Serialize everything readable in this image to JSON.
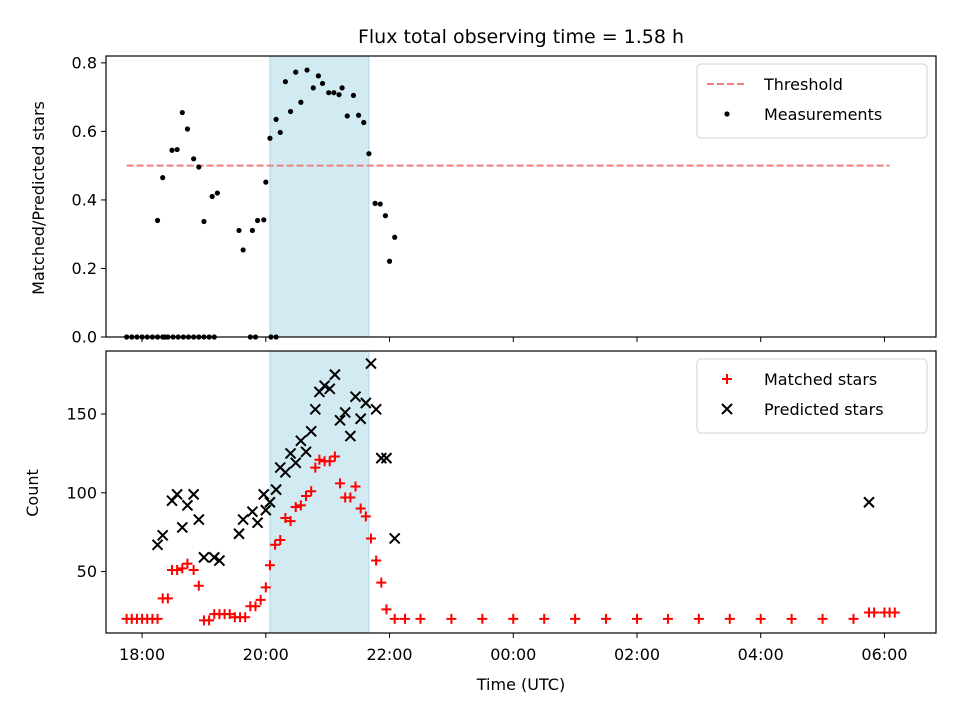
{
  "chart_data": [
    {
      "type": "scatter",
      "title": "Flux total observing time = 1.58 h",
      "ylabel": "Matched/Predicted stars",
      "xlabel": "",
      "xlim": [
        "17:25",
        "06:50"
      ],
      "ylim": [
        0,
        0.82
      ],
      "yticks": [
        "0.0",
        "0.2",
        "0.4",
        "0.6",
        "0.8"
      ],
      "highlight_span": [
        "20:04",
        "21:40"
      ],
      "highlight_color": "#add8e6",
      "grid": false,
      "legend_position": "top-right",
      "threshold": {
        "name": "Threshold",
        "value": 0.5,
        "x_from": "17:45",
        "x_to": "06:05",
        "color": "#f08080",
        "style": "dashed"
      },
      "series": [
        {
          "name": "Measurements",
          "marker": "dot",
          "color": "#000000",
          "points": [
            [
              "17:45",
              0.0
            ],
            [
              "17:50",
              0.0
            ],
            [
              "17:55",
              0.0
            ],
            [
              "18:00",
              0.0
            ],
            [
              "18:05",
              0.0
            ],
            [
              "18:10",
              0.0
            ],
            [
              "18:15",
              0.0
            ],
            [
              "18:20",
              0.0
            ],
            [
              "18:25",
              0.0
            ],
            [
              "18:30",
              0.0
            ],
            [
              "18:35",
              0.0
            ],
            [
              "18:40",
              0.0
            ],
            [
              "18:45",
              0.0
            ],
            [
              "18:50",
              0.0
            ],
            [
              "18:55",
              0.0
            ],
            [
              "19:00",
              0.0
            ],
            [
              "19:05",
              0.0
            ],
            [
              "18:15",
              0.34
            ],
            [
              "18:20",
              0.465
            ],
            [
              "18:29",
              0.545
            ],
            [
              "18:34",
              0.547
            ],
            [
              "18:39",
              0.655
            ],
            [
              "18:44",
              0.607
            ],
            [
              "18:50",
              0.52
            ],
            [
              "18:55",
              0.496
            ],
            [
              "19:00",
              0.337
            ],
            [
              "19:08",
              0.41
            ],
            [
              "19:13",
              0.42
            ],
            [
              "19:34",
              0.311
            ],
            [
              "19:38",
              0.254
            ],
            [
              "19:47",
              0.311
            ],
            [
              "19:52",
              0.34
            ],
            [
              "19:58",
              0.342
            ],
            [
              "20:00",
              0.452
            ],
            [
              "20:04",
              0.58
            ],
            [
              "20:10",
              0.635
            ],
            [
              "20:14",
              0.597
            ],
            [
              "20:19",
              0.745
            ],
            [
              "20:24",
              0.658
            ],
            [
              "20:29",
              0.773
            ],
            [
              "20:34",
              0.685
            ],
            [
              "20:40",
              0.779
            ],
            [
              "20:46",
              0.727
            ],
            [
              "20:51",
              0.762
            ],
            [
              "20:55",
              0.74
            ],
            [
              "21:01",
              0.713
            ],
            [
              "21:06",
              0.713
            ],
            [
              "21:11",
              0.707
            ],
            [
              "21:14",
              0.727
            ],
            [
              "21:19",
              0.645
            ],
            [
              "21:25",
              0.705
            ],
            [
              "21:30",
              0.647
            ],
            [
              "21:35",
              0.626
            ],
            [
              "21:40",
              0.535
            ],
            [
              "21:46",
              0.39
            ],
            [
              "21:51",
              0.388
            ],
            [
              "21:56",
              0.354
            ],
            [
              "22:00",
              0.221
            ],
            [
              "22:05",
              0.291
            ],
            [
              "18:22",
              0.0
            ],
            [
              "19:10",
              0.0
            ],
            [
              "19:45",
              0.0
            ],
            [
              "19:50",
              0.0
            ],
            [
              "20:05",
              0.0
            ],
            [
              "20:10",
              0.0
            ]
          ]
        }
      ]
    },
    {
      "type": "scatter",
      "title": "",
      "ylabel": "Count",
      "xlabel": "Time (UTC)",
      "xlim": [
        "17:25",
        "06:50"
      ],
      "ylim": [
        11,
        190
      ],
      "yticks": [
        "50",
        "100",
        "150"
      ],
      "xticks": [
        "18:00",
        "20:00",
        "22:00",
        "00:00",
        "02:00",
        "04:00",
        "06:00"
      ],
      "highlight_span": [
        "20:04",
        "21:40"
      ],
      "highlight_color": "#add8e6",
      "grid": false,
      "legend_position": "top-right",
      "series": [
        {
          "name": "Matched stars",
          "marker": "plus",
          "color": "#ff0000",
          "points": [
            [
              "17:45",
              20
            ],
            [
              "17:50",
              20
            ],
            [
              "17:55",
              20
            ],
            [
              "18:00",
              20
            ],
            [
              "18:05",
              20
            ],
            [
              "18:10",
              20
            ],
            [
              "18:15",
              20
            ],
            [
              "18:20",
              33
            ],
            [
              "18:25",
              33
            ],
            [
              "18:29",
              51
            ],
            [
              "18:34",
              51
            ],
            [
              "18:39",
              52
            ],
            [
              "18:44",
              55
            ],
            [
              "18:50",
              51
            ],
            [
              "18:55",
              41
            ],
            [
              "19:00",
              19
            ],
            [
              "19:05",
              19
            ],
            [
              "19:10",
              23
            ],
            [
              "19:15",
              23
            ],
            [
              "19:20",
              23
            ],
            [
              "19:25",
              23
            ],
            [
              "19:30",
              21
            ],
            [
              "19:35",
              21
            ],
            [
              "19:40",
              21
            ],
            [
              "19:45",
              28
            ],
            [
              "19:50",
              28
            ],
            [
              "19:55",
              32
            ],
            [
              "20:00",
              40
            ],
            [
              "20:04",
              54
            ],
            [
              "20:09",
              67
            ],
            [
              "20:14",
              70
            ],
            [
              "20:19",
              84
            ],
            [
              "20:24",
              82
            ],
            [
              "20:29",
              91
            ],
            [
              "20:34",
              92
            ],
            [
              "20:39",
              98
            ],
            [
              "20:44",
              101
            ],
            [
              "20:48",
              116
            ],
            [
              "20:52",
              121
            ],
            [
              "20:57",
              120
            ],
            [
              "21:02",
              120
            ],
            [
              "21:07",
              123
            ],
            [
              "21:12",
              106
            ],
            [
              "21:17",
              97
            ],
            [
              "21:22",
              97
            ],
            [
              "21:27",
              104
            ],
            [
              "21:32",
              90
            ],
            [
              "21:37",
              85
            ],
            [
              "21:42",
              71
            ],
            [
              "21:47",
              57
            ],
            [
              "21:52",
              43
            ],
            [
              "21:57",
              26
            ],
            [
              "22:05",
              20
            ],
            [
              "22:15",
              20
            ],
            [
              "22:30",
              20
            ],
            [
              "23:00",
              20
            ],
            [
              "23:30",
              20
            ],
            [
              "00:00",
              20
            ],
            [
              "00:30",
              20
            ],
            [
              "01:00",
              20
            ],
            [
              "01:30",
              20
            ],
            [
              "02:00",
              20
            ],
            [
              "02:30",
              20
            ],
            [
              "03:00",
              20
            ],
            [
              "03:30",
              20
            ],
            [
              "04:00",
              20
            ],
            [
              "04:30",
              20
            ],
            [
              "05:00",
              20
            ],
            [
              "05:30",
              20
            ],
            [
              "05:45",
              24
            ],
            [
              "05:50",
              24
            ],
            [
              "06:00",
              24
            ],
            [
              "06:05",
              24
            ],
            [
              "06:10",
              24
            ]
          ]
        },
        {
          "name": "Predicted stars",
          "marker": "x",
          "color": "#000000",
          "points": [
            [
              "18:15",
              67
            ],
            [
              "18:20",
              73
            ],
            [
              "18:29",
              95
            ],
            [
              "18:34",
              99
            ],
            [
              "18:39",
              78
            ],
            [
              "18:44",
              92
            ],
            [
              "18:50",
              99
            ],
            [
              "18:55",
              83
            ],
            [
              "19:00",
              59
            ],
            [
              "19:10",
              59
            ],
            [
              "19:15",
              57
            ],
            [
              "19:34",
              74
            ],
            [
              "19:38",
              83
            ],
            [
              "19:47",
              88
            ],
            [
              "19:52",
              81
            ],
            [
              "19:58",
              99
            ],
            [
              "20:00",
              89
            ],
            [
              "20:04",
              94
            ],
            [
              "20:10",
              102
            ],
            [
              "20:14",
              116
            ],
            [
              "20:19",
              113
            ],
            [
              "20:24",
              125
            ],
            [
              "20:29",
              119
            ],
            [
              "20:34",
              133
            ],
            [
              "20:39",
              126
            ],
            [
              "20:44",
              139
            ],
            [
              "20:48",
              153
            ],
            [
              "20:52",
              164
            ],
            [
              "20:57",
              168
            ],
            [
              "21:02",
              166
            ],
            [
              "21:07",
              175
            ],
            [
              "21:12",
              146
            ],
            [
              "21:17",
              151
            ],
            [
              "21:22",
              136
            ],
            [
              "21:27",
              161
            ],
            [
              "21:32",
              147
            ],
            [
              "21:37",
              157
            ],
            [
              "21:42",
              182
            ],
            [
              "21:47",
              153
            ],
            [
              "21:52",
              122
            ],
            [
              "21:57",
              122
            ],
            [
              "22:05",
              71
            ],
            [
              "05:45",
              94
            ]
          ]
        }
      ]
    }
  ]
}
